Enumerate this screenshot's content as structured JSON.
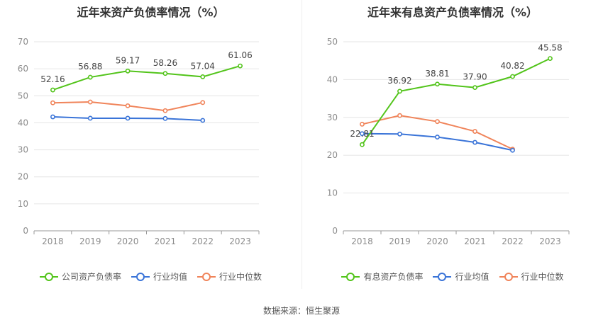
{
  "source": "数据来源：恒生聚源",
  "chart_data": [
    {
      "type": "line",
      "title": "近年来资产负债率情况（%）",
      "categories": [
        "2018",
        "2019",
        "2020",
        "2021",
        "2022",
        "2023"
      ],
      "ylim": [
        0,
        70
      ],
      "yticks": [
        0,
        10,
        20,
        30,
        40,
        50,
        60,
        70
      ],
      "grid": true,
      "legend_position": "bottom",
      "series": [
        {
          "name": "公司资产负债率",
          "color": "#52c41a",
          "values": [
            52.16,
            56.88,
            59.17,
            58.26,
            57.04,
            61.06
          ],
          "labels": [
            "52.16",
            "56.88",
            "59.17",
            "58.26",
            "57.04",
            "61.06"
          ]
        },
        {
          "name": "行业均值",
          "color": "#3a74d8",
          "values": [
            42.2,
            41.7,
            41.7,
            41.6,
            40.9,
            null
          ],
          "labels": []
        },
        {
          "name": "行业中位数",
          "color": "#f0845a",
          "values": [
            47.4,
            47.7,
            46.3,
            44.5,
            47.5,
            null
          ],
          "labels": []
        }
      ]
    },
    {
      "type": "line",
      "title": "近年来有息资产负债率情况（%）",
      "categories": [
        "2018",
        "2019",
        "2020",
        "2021",
        "2022",
        "2023"
      ],
      "ylim": [
        0,
        50
      ],
      "yticks": [
        0,
        10,
        20,
        30,
        40,
        50
      ],
      "grid": true,
      "legend_position": "bottom",
      "series": [
        {
          "name": "有息资产负债率",
          "color": "#52c41a",
          "values": [
            22.81,
            36.92,
            38.81,
            37.9,
            40.82,
            45.58
          ],
          "labels": [
            "22.81",
            "36.92",
            "38.81",
            "37.90",
            "40.82",
            "45.58"
          ]
        },
        {
          "name": "行业均值",
          "color": "#3a74d8",
          "values": [
            25.7,
            25.6,
            24.8,
            23.4,
            21.3,
            null
          ],
          "labels": []
        },
        {
          "name": "行业中位数",
          "color": "#f0845a",
          "values": [
            28.2,
            30.5,
            28.9,
            26.3,
            21.6,
            null
          ],
          "labels": []
        }
      ]
    }
  ]
}
